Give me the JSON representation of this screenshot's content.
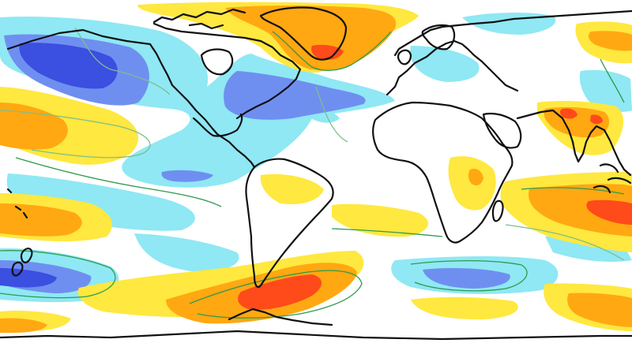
{
  "map": {
    "projection": "equirectangular",
    "anomaly_levels": [
      {
        "level": "strong-negative",
        "color": "#3b4fe0"
      },
      {
        "level": "moderate-negative",
        "color": "#6f8ff0"
      },
      {
        "level": "weak-negative",
        "color": "#8fe8f4"
      },
      {
        "level": "near-zero",
        "color": "#ffffff"
      },
      {
        "level": "weak-positive",
        "color": "#ffe83f"
      },
      {
        "level": "moderate-positive",
        "color": "#ffa812"
      },
      {
        "level": "strong-positive",
        "color": "#ff4a1a"
      }
    ],
    "coastline_color": "#111111",
    "isoline_colors": [
      "#2e9a4c",
      "#7bbf8a"
    ]
  }
}
